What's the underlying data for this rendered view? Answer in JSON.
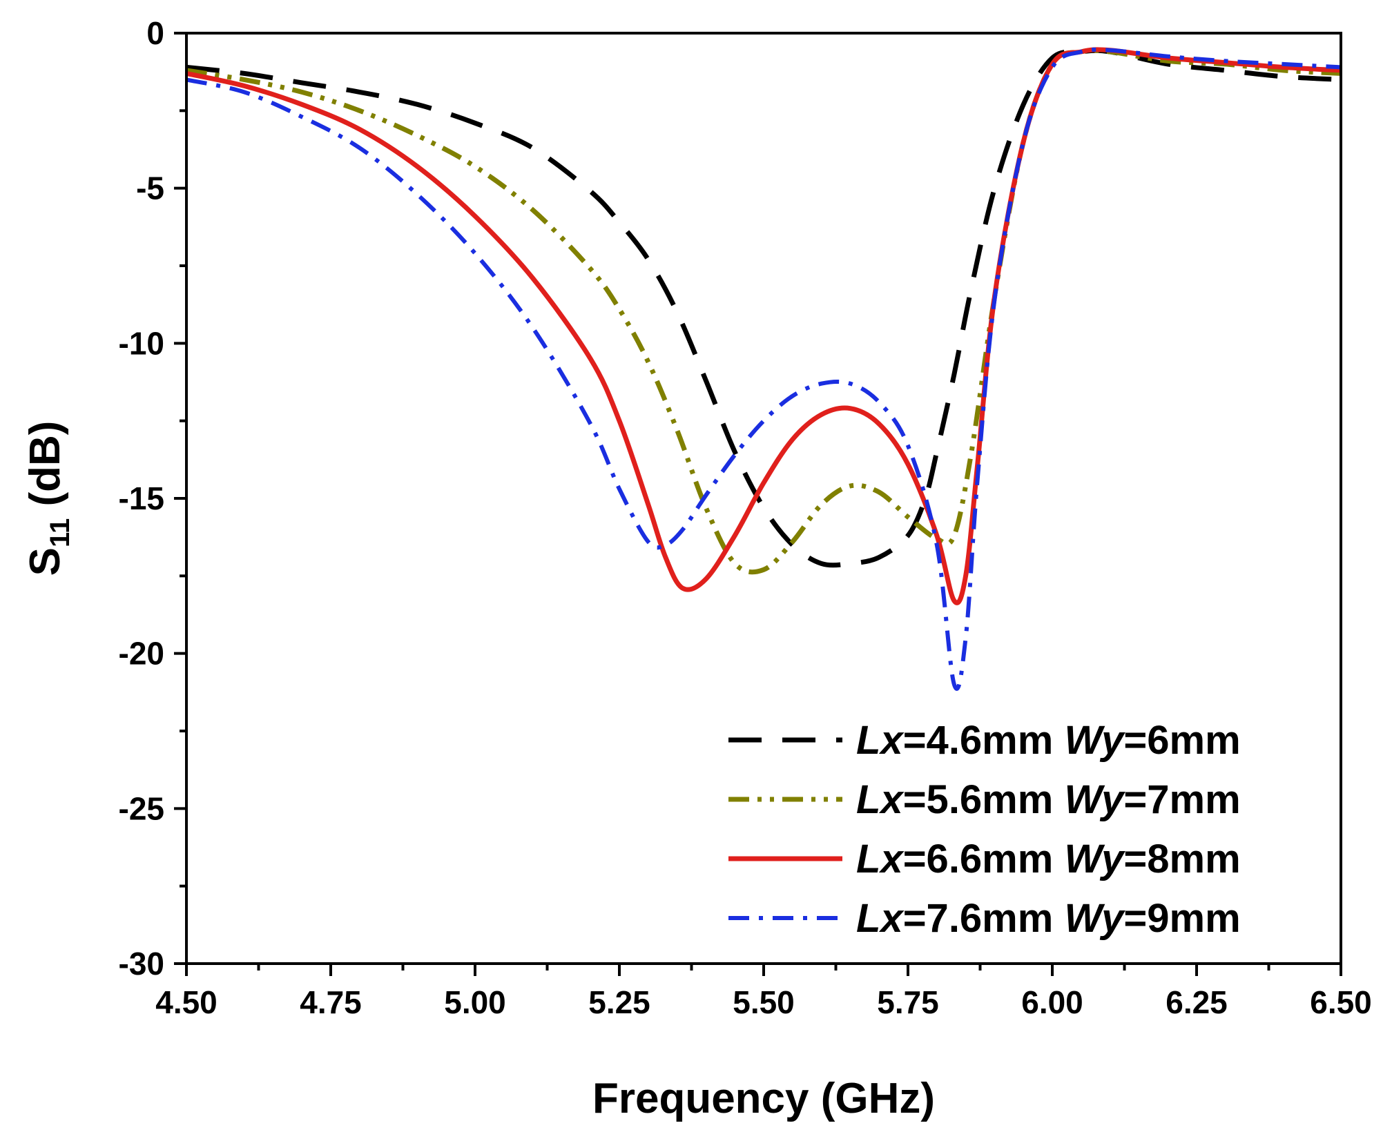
{
  "chart_data": {
    "type": "line",
    "title": "",
    "xlabel": "Frequency (GHz)",
    "ylabel": {
      "main": "S",
      "sub": "11",
      "unit": " (dB)"
    },
    "xlim": [
      4.5,
      6.5
    ],
    "ylim": [
      -30,
      0
    ],
    "xticks": [
      4.5,
      4.75,
      5.0,
      5.25,
      5.5,
      5.75,
      6.0,
      6.25,
      6.5
    ],
    "xtick_labels": [
      "4.50",
      "4.75",
      "5.00",
      "5.25",
      "5.50",
      "5.75",
      "6.00",
      "6.25",
      "6.50"
    ],
    "yticks": [
      0,
      -5,
      -10,
      -15,
      -20,
      -25,
      -30
    ],
    "ytick_labels": [
      "0",
      "-5",
      "-10",
      "-15",
      "-20",
      "-25",
      "-30"
    ],
    "grid": false,
    "legend_position": "bottom-right",
    "series": [
      {
        "name": "Lx=4.6mm Wy=6mm",
        "label_parts": [
          "Lx",
          "=4.6mm ",
          "Wy",
          "=6mm"
        ],
        "color": "#000000",
        "dash": "dash",
        "points": [
          [
            4.5,
            -1.1
          ],
          [
            4.6,
            -1.3
          ],
          [
            4.7,
            -1.6
          ],
          [
            4.8,
            -1.9
          ],
          [
            4.9,
            -2.3
          ],
          [
            5.0,
            -2.9
          ],
          [
            5.1,
            -3.7
          ],
          [
            5.2,
            -5.1
          ],
          [
            5.25,
            -6.1
          ],
          [
            5.3,
            -7.3
          ],
          [
            5.35,
            -9.0
          ],
          [
            5.4,
            -11.2
          ],
          [
            5.45,
            -13.5
          ],
          [
            5.5,
            -15.3
          ],
          [
            5.55,
            -16.5
          ],
          [
            5.6,
            -17.1
          ],
          [
            5.65,
            -17.1
          ],
          [
            5.7,
            -16.9
          ],
          [
            5.75,
            -16.2
          ],
          [
            5.78,
            -15.0
          ],
          [
            5.8,
            -13.5
          ],
          [
            5.83,
            -11.0
          ],
          [
            5.86,
            -8.2
          ],
          [
            5.9,
            -5.0
          ],
          [
            5.95,
            -2.3
          ],
          [
            6.0,
            -0.8
          ],
          [
            6.05,
            -0.6
          ],
          [
            6.1,
            -0.6
          ],
          [
            6.2,
            -1.0
          ],
          [
            6.3,
            -1.2
          ],
          [
            6.4,
            -1.4
          ],
          [
            6.5,
            -1.5
          ]
        ]
      },
      {
        "name": "Lx=5.6mm Wy=7mm",
        "label_parts": [
          "Lx",
          "=5.6mm ",
          "Wy",
          "=7mm"
        ],
        "color": "#808000",
        "dash": "dash-dot-dot",
        "points": [
          [
            4.5,
            -1.2
          ],
          [
            4.6,
            -1.5
          ],
          [
            4.7,
            -1.9
          ],
          [
            4.8,
            -2.5
          ],
          [
            4.9,
            -3.3
          ],
          [
            5.0,
            -4.3
          ],
          [
            5.1,
            -5.7
          ],
          [
            5.2,
            -7.6
          ],
          [
            5.25,
            -8.9
          ],
          [
            5.3,
            -10.6
          ],
          [
            5.35,
            -12.8
          ],
          [
            5.4,
            -15.3
          ],
          [
            5.45,
            -17.1
          ],
          [
            5.5,
            -17.3
          ],
          [
            5.55,
            -16.4
          ],
          [
            5.6,
            -15.2
          ],
          [
            5.65,
            -14.6
          ],
          [
            5.7,
            -14.8
          ],
          [
            5.75,
            -15.6
          ],
          [
            5.8,
            -16.3
          ],
          [
            5.83,
            -16.2
          ],
          [
            5.86,
            -13.5
          ],
          [
            5.9,
            -8.5
          ],
          [
            5.95,
            -3.5
          ],
          [
            6.0,
            -1.0
          ],
          [
            6.05,
            -0.6
          ],
          [
            6.1,
            -0.6
          ],
          [
            6.2,
            -0.9
          ],
          [
            6.3,
            -1.0
          ],
          [
            6.4,
            -1.2
          ],
          [
            6.5,
            -1.3
          ]
        ]
      },
      {
        "name": "Lx=6.6mm Wy=8mm",
        "label_parts": [
          "Lx",
          "=6.6mm ",
          "Wy",
          "=8mm"
        ],
        "color": "#e0201c",
        "dash": "solid",
        "points": [
          [
            4.5,
            -1.3
          ],
          [
            4.6,
            -1.7
          ],
          [
            4.7,
            -2.3
          ],
          [
            4.8,
            -3.1
          ],
          [
            4.9,
            -4.3
          ],
          [
            5.0,
            -5.9
          ],
          [
            5.1,
            -7.9
          ],
          [
            5.2,
            -10.5
          ],
          [
            5.25,
            -12.5
          ],
          [
            5.3,
            -15.2
          ],
          [
            5.33,
            -16.9
          ],
          [
            5.36,
            -17.9
          ],
          [
            5.4,
            -17.6
          ],
          [
            5.45,
            -16.2
          ],
          [
            5.5,
            -14.5
          ],
          [
            5.55,
            -13.1
          ],
          [
            5.6,
            -12.3
          ],
          [
            5.65,
            -12.1
          ],
          [
            5.7,
            -12.6
          ],
          [
            5.75,
            -13.9
          ],
          [
            5.8,
            -16.2
          ],
          [
            5.83,
            -18.3
          ],
          [
            5.85,
            -17.5
          ],
          [
            5.87,
            -14.0
          ],
          [
            5.9,
            -8.5
          ],
          [
            5.95,
            -3.5
          ],
          [
            6.0,
            -1.0
          ],
          [
            6.05,
            -0.6
          ],
          [
            6.1,
            -0.55
          ],
          [
            6.2,
            -0.8
          ],
          [
            6.3,
            -0.95
          ],
          [
            6.4,
            -1.1
          ],
          [
            6.5,
            -1.2
          ]
        ]
      },
      {
        "name": "Lx=7.6mm Wy=9mm",
        "label_parts": [
          "Lx",
          "=7.6mm ",
          "Wy",
          "=9mm"
        ],
        "color": "#1a2ee0",
        "dash": "dash-dot",
        "points": [
          [
            4.5,
            -1.5
          ],
          [
            4.6,
            -1.9
          ],
          [
            4.7,
            -2.7
          ],
          [
            4.8,
            -3.7
          ],
          [
            4.9,
            -5.2
          ],
          [
            5.0,
            -7.1
          ],
          [
            5.1,
            -9.5
          ],
          [
            5.2,
            -12.6
          ],
          [
            5.25,
            -14.7
          ],
          [
            5.3,
            -16.4
          ],
          [
            5.33,
            -16.5
          ],
          [
            5.36,
            -16.0
          ],
          [
            5.4,
            -14.9
          ],
          [
            5.45,
            -13.6
          ],
          [
            5.5,
            -12.5
          ],
          [
            5.55,
            -11.7
          ],
          [
            5.6,
            -11.3
          ],
          [
            5.65,
            -11.3
          ],
          [
            5.7,
            -11.9
          ],
          [
            5.75,
            -13.3
          ],
          [
            5.8,
            -16.5
          ],
          [
            5.83,
            -21.0
          ],
          [
            5.85,
            -19.5
          ],
          [
            5.87,
            -14.5
          ],
          [
            5.9,
            -8.6
          ],
          [
            5.95,
            -3.5
          ],
          [
            6.0,
            -1.1
          ],
          [
            6.05,
            -0.6
          ],
          [
            6.1,
            -0.55
          ],
          [
            6.2,
            -0.75
          ],
          [
            6.3,
            -0.9
          ],
          [
            6.4,
            -1.0
          ],
          [
            6.5,
            -1.1
          ]
        ]
      }
    ]
  }
}
